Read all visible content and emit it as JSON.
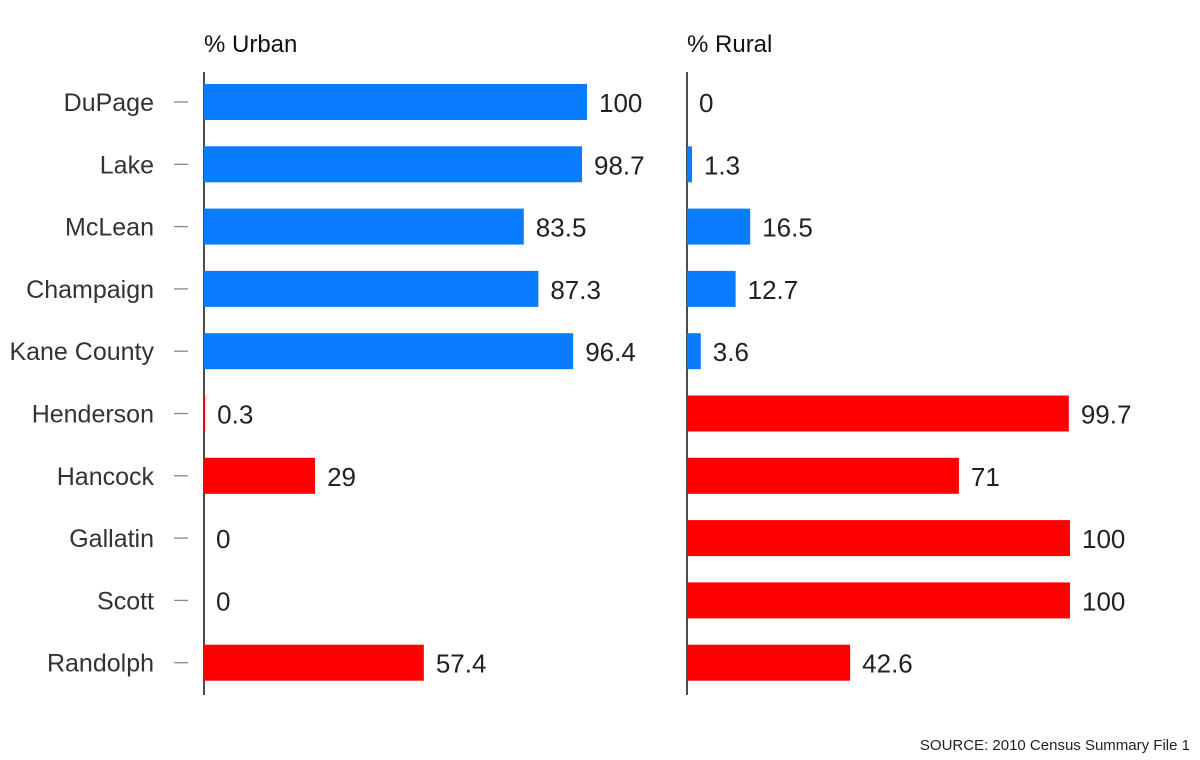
{
  "chart_data": {
    "type": "bar",
    "orientation": "horizontal",
    "categories": [
      "DuPage",
      "Lake",
      "McLean",
      "Champaign",
      "Kane County",
      "Henderson",
      "Hancock",
      "Gallatin",
      "Scott",
      "Randolph"
    ],
    "series": [
      {
        "name": "% Urban",
        "values": [
          100,
          98.7,
          83.5,
          87.3,
          96.4,
          0.3,
          29,
          0,
          0,
          57.4
        ],
        "labels": [
          "100",
          "98.7",
          "83.5",
          "87.3",
          "96.4",
          "0.3",
          "29",
          "0",
          "0",
          "57.4"
        ]
      },
      {
        "name": "% Rural",
        "values": [
          0,
          1.3,
          16.5,
          12.7,
          3.6,
          99.7,
          71,
          100,
          100,
          42.6
        ],
        "labels": [
          "0",
          "1.3",
          "16.5",
          "12.7",
          "3.6",
          "99.7",
          "71",
          "100",
          "100",
          "42.6"
        ]
      }
    ],
    "category_group": [
      "urban",
      "urban",
      "urban",
      "urban",
      "urban",
      "rural",
      "rural",
      "rural",
      "rural",
      "rural"
    ],
    "colors": {
      "urban": "#0a7cff",
      "rural": "#ff0000",
      "axis": "#111111",
      "tick": "#888888"
    },
    "xlim": [
      0,
      100
    ],
    "grid": false,
    "legend": "none"
  },
  "source_note": "SOURCE: 2010 Census Summary File 1"
}
